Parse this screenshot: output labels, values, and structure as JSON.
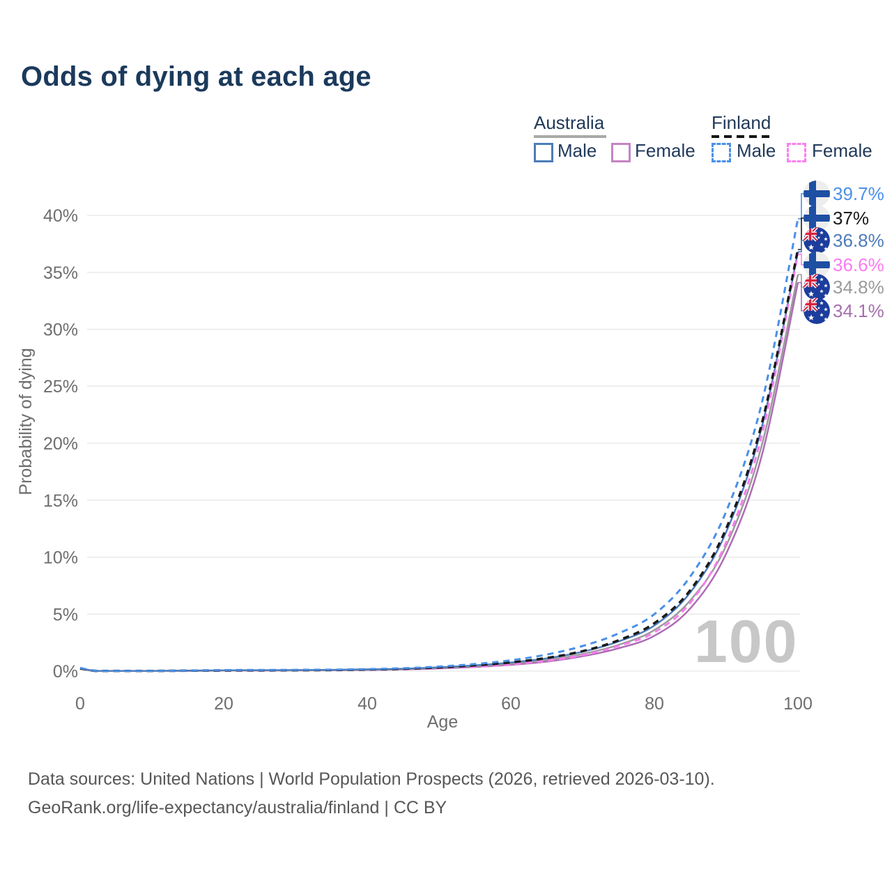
{
  "header": {
    "title": "Odds of dying at each age"
  },
  "legend": {
    "groups": [
      {
        "label": "Australia",
        "line_style": "solid",
        "underline_color": "#a9a9a9",
        "items": [
          {
            "label": "Male",
            "color": "#4d7cb8"
          },
          {
            "label": "Female",
            "color": "#c583c5"
          }
        ]
      },
      {
        "label": "Finland",
        "line_style": "dashed",
        "underline_color": "#151515",
        "items": [
          {
            "label": "Male",
            "color": "#4a90e8"
          },
          {
            "label": "Female",
            "color": "#fb7ff0"
          }
        ]
      }
    ]
  },
  "chart_data": {
    "type": "line",
    "title": "Odds of dying at each age",
    "xlabel": "Age",
    "ylabel": "Probability of dying",
    "xlim": [
      0,
      100
    ],
    "ylim": [
      0,
      42
    ],
    "grid": "horizontal-only",
    "legend_position": "top-right",
    "watermark": "100",
    "x_ticks": [
      {
        "value": 0,
        "label": "0"
      },
      {
        "value": 20,
        "label": "20"
      },
      {
        "value": 40,
        "label": "40"
      },
      {
        "value": 60,
        "label": "60"
      },
      {
        "value": 80,
        "label": "80"
      },
      {
        "value": 100,
        "label": "100"
      }
    ],
    "y_ticks": [
      {
        "value": 0,
        "label": "0%"
      },
      {
        "value": 5,
        "label": "5%"
      },
      {
        "value": 10,
        "label": "10%"
      },
      {
        "value": 15,
        "label": "15%"
      },
      {
        "value": 20,
        "label": "20%"
      },
      {
        "value": 25,
        "label": "25%"
      },
      {
        "value": 30,
        "label": "30%"
      },
      {
        "value": 35,
        "label": "35%"
      },
      {
        "value": 40,
        "label": "40%"
      }
    ],
    "ages": [
      0,
      2,
      5,
      10,
      15,
      20,
      25,
      30,
      35,
      40,
      45,
      50,
      55,
      60,
      65,
      70,
      75,
      80,
      85,
      90,
      95,
      100
    ],
    "series": [
      {
        "id": "australia-female",
        "name": "Australia Female",
        "country": "Australia",
        "sex": "Female",
        "color": "#ad6cb5",
        "label_color": "#a66fae",
        "dashed": false,
        "width": 2.5,
        "flag": "au",
        "end_value": 34.1,
        "end_label": "34.1%",
        "values": [
          0.21,
          0.02,
          0.01,
          0.01,
          0.02,
          0.04,
          0.05,
          0.06,
          0.08,
          0.1,
          0.15,
          0.23,
          0.36,
          0.55,
          0.83,
          1.3,
          2.0,
          3.1,
          5.5,
          10.3,
          19.0,
          34.1
        ]
      },
      {
        "id": "australia-total",
        "name": "Australia (both sexes)",
        "country": "Australia",
        "sex": "Total",
        "color": "#9b9b9b",
        "label_color": "#9b9b9b",
        "dashed": false,
        "width": 2.5,
        "flag": "au",
        "end_value": 34.8,
        "end_label": "34.8%",
        "values": [
          0.24,
          0.03,
          0.02,
          0.02,
          0.03,
          0.05,
          0.06,
          0.07,
          0.09,
          0.12,
          0.18,
          0.28,
          0.43,
          0.65,
          0.98,
          1.5,
          2.3,
          3.6,
          6.2,
          11.0,
          19.9,
          34.8
        ]
      },
      {
        "id": "australia-male",
        "name": "Australia Male",
        "country": "Australia",
        "sex": "Male",
        "color": "#4d7cb8",
        "label_color": "#4d7cb8",
        "dashed": false,
        "width": 2.5,
        "flag": "au",
        "end_value": 36.8,
        "end_label": "36.8%",
        "values": [
          0.26,
          0.03,
          0.02,
          0.02,
          0.04,
          0.07,
          0.08,
          0.09,
          0.11,
          0.15,
          0.21,
          0.33,
          0.5,
          0.75,
          1.12,
          1.7,
          2.6,
          4.0,
          6.9,
          12.2,
          21.5,
          36.8
        ]
      },
      {
        "id": "finland-female",
        "name": "Finland Female",
        "country": "Finland",
        "sex": "Female",
        "color": "#fa7cf0",
        "label_color": "#fa7cf0",
        "dashed": true,
        "width": 3,
        "flag": "fi",
        "end_value": 36.6,
        "end_label": "36.6%",
        "values": [
          0.22,
          0.03,
          0.01,
          0.01,
          0.03,
          0.04,
          0.05,
          0.06,
          0.08,
          0.11,
          0.16,
          0.25,
          0.39,
          0.6,
          0.9,
          1.4,
          2.2,
          3.4,
          6.0,
          11.3,
          20.8,
          36.6
        ]
      },
      {
        "id": "finland-total",
        "name": "Finland (both sexes)",
        "country": "Finland",
        "sex": "Total",
        "color": "#1a1a1a",
        "label_color": "#1a1a1a",
        "dashed": true,
        "width": 3.5,
        "flag": "fi",
        "end_value": 37.0,
        "end_label": "37%",
        "values": [
          0.24,
          0.03,
          0.02,
          0.02,
          0.04,
          0.06,
          0.07,
          0.08,
          0.1,
          0.14,
          0.2,
          0.32,
          0.5,
          0.76,
          1.15,
          1.75,
          2.7,
          4.2,
          7.1,
          12.5,
          21.8,
          37.0
        ]
      },
      {
        "id": "finland-male",
        "name": "Finland Male",
        "country": "Finland",
        "sex": "Male",
        "color": "#4a90e8",
        "label_color": "#4a90e8",
        "dashed": true,
        "width": 3,
        "flag": "fi",
        "end_value": 39.7,
        "end_label": "39.7%",
        "values": [
          0.28,
          0.04,
          0.02,
          0.02,
          0.05,
          0.09,
          0.1,
          0.11,
          0.13,
          0.17,
          0.25,
          0.4,
          0.62,
          0.95,
          1.45,
          2.2,
          3.3,
          5.0,
          8.3,
          14.0,
          23.6,
          39.7
        ]
      }
    ]
  },
  "footer": {
    "line1": "Data sources: United Nations | World Population Prospects (2026, retrieved 2026-03-10).",
    "line2": "GeoRank.org/life-expectancy/australia/finland | CC BY"
  }
}
